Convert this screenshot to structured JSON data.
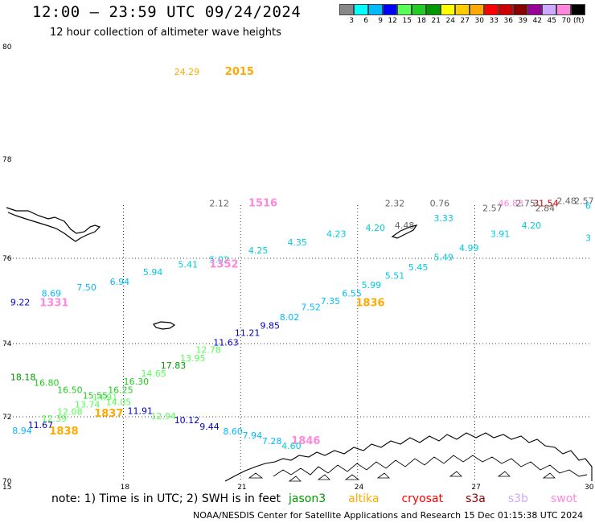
{
  "header": {
    "title": "12:00 – 23:59 UTC 09/24/2024",
    "subtitle": "12 hour collection of altimeter wave heights"
  },
  "colorbar": {
    "labels": [
      "3",
      "6",
      "9",
      "12",
      "15",
      "18",
      "21",
      "24",
      "27",
      "30",
      "33",
      "36",
      "39",
      "42",
      "45",
      "70"
    ],
    "colors": [
      "#888888",
      "#00ffff",
      "#00bbff",
      "#0000ff",
      "#55ff55",
      "#22cc22",
      "#009900",
      "#ffff00",
      "#ffcc00",
      "#ffaa00",
      "#ff0000",
      "#cc0000",
      "#880000",
      "#990099",
      "#ccaaff",
      "#ff88dd",
      "#000000"
    ],
    "unit": "(ft)"
  },
  "axes": {
    "lat_labels": [
      "80",
      "78",
      "76",
      "74",
      "72",
      "70"
    ],
    "lon_labels": [
      "15",
      "18",
      "21",
      "24",
      "27",
      "30"
    ]
  },
  "observations": [
    {
      "text": "24.29",
      "color": "#ffaa00",
      "lon": 19.3,
      "lat": 79.5
    },
    {
      "text": "2015",
      "color": "#ffaa00",
      "lon": 20.6,
      "lat": 79.5,
      "type": "time"
    },
    {
      "text": "2.12",
      "color": "#666666",
      "lon": 20.2,
      "lat": 77.05
    },
    {
      "text": "1516",
      "color": "#ff88dd",
      "lon": 21.2,
      "lat": 77.05,
      "type": "time"
    },
    {
      "text": "2.32",
      "color": "#666666",
      "lon": 24.7,
      "lat": 77.05
    },
    {
      "text": "0.76",
      "color": "#666666",
      "lon": 25.85,
      "lat": 77.05
    },
    {
      "text": "46.83",
      "color": "#ff88dd",
      "lon": 27.6,
      "lat": 77.05
    },
    {
      "text": "31.54",
      "color": "#cc0000",
      "lon": 28.5,
      "lat": 77.05
    },
    {
      "text": "6",
      "color": "#00ccdd",
      "lon": 29.9,
      "lat": 77.0
    },
    {
      "text": "3",
      "color": "#00ccdd",
      "lon": 29.9,
      "lat": 76.35
    },
    {
      "text": "9.22",
      "color": "#0000cc",
      "lon": 15.1,
      "lat": 74.9
    },
    {
      "text": "8.69",
      "color": "#00bbff",
      "lon": 15.9,
      "lat": 75.1
    },
    {
      "text": "1331",
      "color": "#ff88dd",
      "lon": 15.85,
      "lat": 74.88,
      "type": "time"
    },
    {
      "text": "7.50",
      "color": "#00bbff",
      "lon": 16.8,
      "lat": 75.25
    },
    {
      "text": "6.94",
      "color": "#00bbff",
      "lon": 17.65,
      "lat": 75.38
    },
    {
      "text": "5.94",
      "color": "#00ccdd",
      "lon": 18.5,
      "lat": 75.6
    },
    {
      "text": "5.41",
      "color": "#00ccdd",
      "lon": 19.4,
      "lat": 75.78
    },
    {
      "text": "5.02",
      "color": "#00ccdd",
      "lon": 20.2,
      "lat": 75.9
    },
    {
      "text": "1352",
      "color": "#ff88dd",
      "lon": 20.2,
      "lat": 75.78,
      "type": "time"
    },
    {
      "text": "4.25",
      "color": "#00ccdd",
      "lon": 21.2,
      "lat": 76.1
    },
    {
      "text": "4.35",
      "color": "#00ccdd",
      "lon": 22.2,
      "lat": 76.26
    },
    {
      "text": "4.23",
      "color": "#00ccdd",
      "lon": 23.2,
      "lat": 76.43
    },
    {
      "text": "4.20",
      "color": "#00ccdd",
      "lon": 24.2,
      "lat": 76.55
    },
    {
      "text": "4.48",
      "color": "#666666",
      "lon": 24.95,
      "lat": 76.6
    },
    {
      "text": "3.33",
      "color": "#00ccdd",
      "lon": 25.95,
      "lat": 76.75
    },
    {
      "text": "2.57",
      "color": "#666666",
      "lon": 27.2,
      "lat": 76.95
    },
    {
      "text": "2.75",
      "color": "#666666",
      "lon": 28.05,
      "lat": 77.05
    },
    {
      "text": "2.84",
      "color": "#666666",
      "lon": 28.55,
      "lat": 76.95
    },
    {
      "text": "2.48",
      "color": "#666666",
      "lon": 29.1,
      "lat": 77.1
    },
    {
      "text": "2.57",
      "color": "#666666",
      "lon": 29.55,
      "lat": 77.1
    },
    {
      "text": "3.91",
      "color": "#00ccdd",
      "lon": 27.4,
      "lat": 76.43
    },
    {
      "text": "4.20",
      "color": "#00ccdd",
      "lon": 28.2,
      "lat": 76.6
    },
    {
      "text": "4.99",
      "color": "#00ccdd",
      "lon": 26.6,
      "lat": 76.15
    },
    {
      "text": "5.49",
      "color": "#00ccdd",
      "lon": 25.95,
      "lat": 75.95
    },
    {
      "text": "5.45",
      "color": "#00ccdd",
      "lon": 25.3,
      "lat": 75.72
    },
    {
      "text": "5.51",
      "color": "#00ccdd",
      "lon": 24.7,
      "lat": 75.52
    },
    {
      "text": "5.99",
      "color": "#00ccdd",
      "lon": 24.1,
      "lat": 75.3
    },
    {
      "text": "6.55",
      "color": "#00bbff",
      "lon": 23.6,
      "lat": 75.1
    },
    {
      "text": "1836",
      "color": "#ffaa00",
      "lon": 23.95,
      "lat": 74.88,
      "type": "time"
    },
    {
      "text": "7.35",
      "color": "#00bbff",
      "lon": 23.05,
      "lat": 74.92
    },
    {
      "text": "7.52",
      "color": "#00bbff",
      "lon": 22.55,
      "lat": 74.78
    },
    {
      "text": "8.02",
      "color": "#00bbff",
      "lon": 22.0,
      "lat": 74.55
    },
    {
      "text": "9.85",
      "color": "#0000cc",
      "lon": 21.5,
      "lat": 74.35
    },
    {
      "text": "11.21",
      "color": "#0000cc",
      "lon": 20.85,
      "lat": 74.18
    },
    {
      "text": "11.63",
      "color": "#0000cc",
      "lon": 20.3,
      "lat": 73.95
    },
    {
      "text": "12.78",
      "color": "#55ff55",
      "lon": 19.85,
      "lat": 73.75
    },
    {
      "text": "13.95",
      "color": "#55ff55",
      "lon": 19.45,
      "lat": 73.52
    },
    {
      "text": "17.83",
      "color": "#009900",
      "lon": 18.95,
      "lat": 73.32
    },
    {
      "text": "14.65",
      "color": "#55ff55",
      "lon": 18.45,
      "lat": 73.1
    },
    {
      "text": "16.30",
      "color": "#22cc22",
      "lon": 18.0,
      "lat": 72.88
    },
    {
      "text": "16.25",
      "color": "#22cc22",
      "lon": 17.6,
      "lat": 72.65
    },
    {
      "text": "18.18",
      "color": "#009900",
      "lon": 15.1,
      "lat": 73.0
    },
    {
      "text": "16.80",
      "color": "#22cc22",
      "lon": 15.7,
      "lat": 72.85
    },
    {
      "text": "16.50",
      "color": "#22cc22",
      "lon": 16.3,
      "lat": 72.65
    },
    {
      "text": "15.55",
      "color": "#22cc22",
      "lon": 16.95,
      "lat": 72.5
    },
    {
      "text": "14.91",
      "color": "#55ff55",
      "lon": 17.2,
      "lat": 72.45
    },
    {
      "text": "13.74",
      "color": "#55ff55",
      "lon": 16.75,
      "lat": 72.25
    },
    {
      "text": "14.05",
      "color": "#55ff55",
      "lon": 17.55,
      "lat": 72.32
    },
    {
      "text": "12.08",
      "color": "#55ff55",
      "lon": 16.3,
      "lat": 72.05
    },
    {
      "text": "1837",
      "color": "#ffaa00",
      "lon": 17.25,
      "lat": 72.0,
      "type": "time"
    },
    {
      "text": "11.91",
      "color": "#0000cc",
      "lon": 18.1,
      "lat": 72.08
    },
    {
      "text": "12.94",
      "color": "#55ff55",
      "lon": 18.7,
      "lat": 71.92
    },
    {
      "text": "12.39",
      "color": "#55ff55",
      "lon": 15.9,
      "lat": 71.85
    },
    {
      "text": "11.67",
      "color": "#0000cc",
      "lon": 15.55,
      "lat": 71.65
    },
    {
      "text": "8.94",
      "color": "#00bbff",
      "lon": 15.15,
      "lat": 71.48
    },
    {
      "text": "1838",
      "color": "#ffaa00",
      "lon": 16.1,
      "lat": 71.45,
      "type": "time"
    },
    {
      "text": "10.12",
      "color": "#0000cc",
      "lon": 19.3,
      "lat": 71.8
    },
    {
      "text": "9.44",
      "color": "#0000cc",
      "lon": 19.95,
      "lat": 71.6
    },
    {
      "text": "8.60",
      "color": "#00bbff",
      "lon": 20.55,
      "lat": 71.45
    },
    {
      "text": "7.94",
      "color": "#00bbff",
      "lon": 21.05,
      "lat": 71.33
    },
    {
      "text": "7.28",
      "color": "#00bbff",
      "lon": 21.55,
      "lat": 71.15
    },
    {
      "text": "1846",
      "color": "#ff88dd",
      "lon": 22.3,
      "lat": 71.15,
      "type": "time"
    },
    {
      "text": "4.60",
      "color": "#00ccdd",
      "lon": 22.05,
      "lat": 71.0
    }
  ],
  "note": {
    "prefix": "note:  1) Time is in UTC;  2) SWH is in feet",
    "satellites": [
      {
        "name": "jason3",
        "color": "#009900"
      },
      {
        "name": "altika",
        "color": "#ffaa00"
      },
      {
        "name": "cryosat",
        "color": "#ff0000"
      },
      {
        "name": "s3a",
        "color": "#880000"
      },
      {
        "name": "s3b",
        "color": "#ccaaff"
      },
      {
        "name": "swot",
        "color": "#ff88dd"
      }
    ]
  },
  "credit": "NOAA/NESDIS Center for Satellite Applications and Research    15 Dec 01:15:38 UTC 2024"
}
